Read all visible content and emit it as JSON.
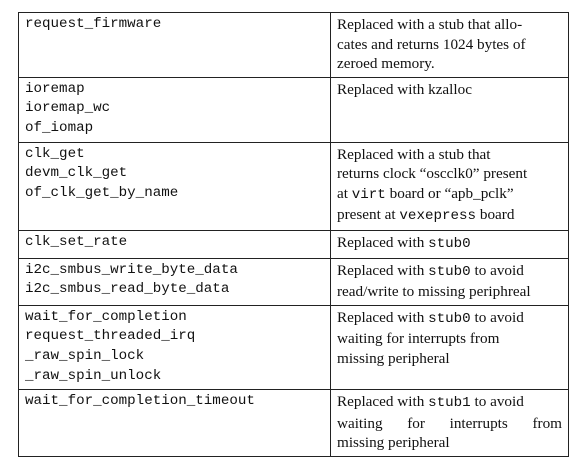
{
  "rows": [
    {
      "functions": [
        "request_firmware"
      ],
      "description": [
        [
          {
            "t": "Replaced with a stub that allo-"
          }
        ],
        [
          {
            "t": "cates and returns 1024 bytes of"
          }
        ],
        [
          {
            "t": "zeroed memory."
          }
        ]
      ]
    },
    {
      "functions": [
        "ioremap",
        "ioremap_wc",
        "of_iomap"
      ],
      "description": [
        [
          {
            "t": "Replaced with kzalloc"
          }
        ]
      ]
    },
    {
      "functions": [
        "clk_get",
        "devm_clk_get",
        "of_clk_get_by_name"
      ],
      "description": [
        [
          {
            "t": "Replaced with a stub that"
          }
        ],
        [
          {
            "t": "returns clock “oscclk0” present"
          }
        ],
        [
          {
            "t": "at "
          },
          {
            "t": "virt",
            "code": true
          },
          {
            "t": " board or “apb_pclk”"
          }
        ],
        [
          {
            "t": "present at "
          },
          {
            "t": "vexepress",
            "code": true
          },
          {
            "t": " board"
          }
        ]
      ]
    },
    {
      "functions": [
        "clk_set_rate"
      ],
      "description": [
        [
          {
            "t": "Replaced with "
          },
          {
            "t": "stub0",
            "code": true
          }
        ]
      ]
    },
    {
      "functions": [
        "i2c_smbus_write_byte_data",
        "i2c_smbus_read_byte_data"
      ],
      "description": [
        [
          {
            "t": "Replaced with "
          },
          {
            "t": "stub0",
            "code": true
          },
          {
            "t": " to avoid"
          }
        ],
        [
          {
            "t": "read/write to missing periphreal"
          }
        ]
      ]
    },
    {
      "functions": [
        "wait_for_completion",
        "request_threaded_irq",
        "_raw_spin_lock",
        "_raw_spin_unlock"
      ],
      "description": [
        [
          {
            "t": "Replaced with "
          },
          {
            "t": "stub0",
            "code": true
          },
          {
            "t": " to avoid"
          }
        ],
        [
          {
            "t": "waiting for interrupts from"
          }
        ],
        [
          {
            "t": "missing peripheral"
          }
        ]
      ]
    },
    {
      "functions": [
        "wait_for_completion_timeout"
      ],
      "description": [
        [
          {
            "t": "Replaced with "
          },
          {
            "t": "stub1",
            "code": true
          },
          {
            "t": " to avoid"
          }
        ],
        [
          {
            "t": "waiting  for  interrupts  from",
            "justify": true
          }
        ],
        [
          {
            "t": "missing peripheral"
          }
        ]
      ]
    }
  ]
}
